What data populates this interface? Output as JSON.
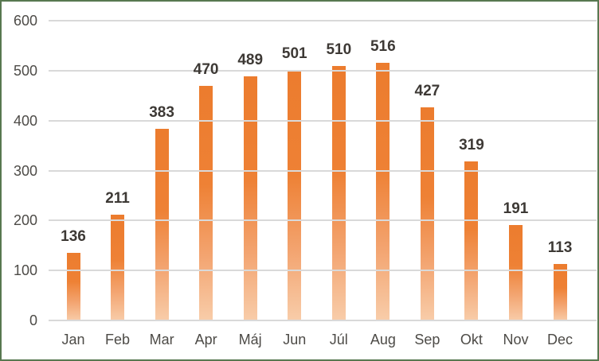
{
  "chart_data": {
    "type": "bar",
    "categories": [
      "Jan",
      "Feb",
      "Mar",
      "Apr",
      "Máj",
      "Jun",
      "Júl",
      "Aug",
      "Sep",
      "Okt",
      "Nov",
      "Dec"
    ],
    "values": [
      136,
      211,
      383,
      470,
      489,
      501,
      510,
      516,
      427,
      319,
      191,
      113
    ],
    "yticks": [
      0,
      100,
      200,
      300,
      400,
      500,
      600
    ],
    "ylim": [
      0,
      600
    ],
    "grid": true,
    "gridlines_over_bars": true,
    "legend": false,
    "data_labels_shown": true,
    "colors": {
      "bar_top": "#ec7c2e",
      "bar_bottom": "#f8cdaa",
      "gridline": "#d9d9d9",
      "value_label": "#3d3935",
      "axis_label": "#4d4b47",
      "frame_border": "#587850",
      "background": "#ffffff"
    }
  }
}
